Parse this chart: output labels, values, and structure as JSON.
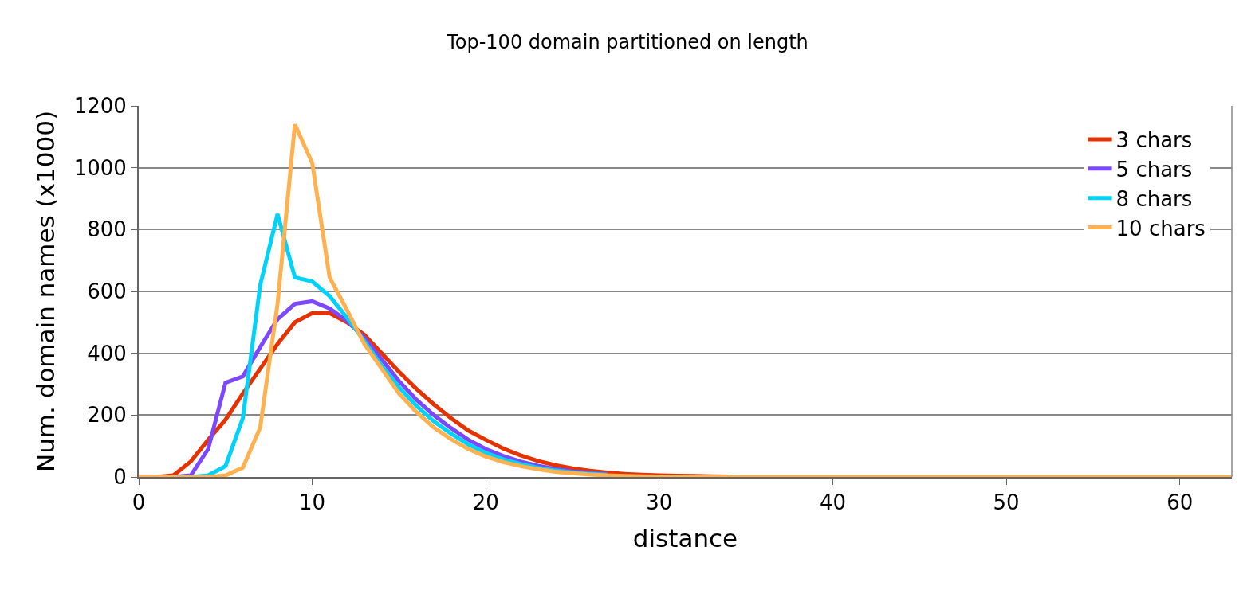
{
  "chart_data": {
    "type": "line",
    "title": "Top-100 domain partitioned on length",
    "xlabel": "distance",
    "ylabel": "Num. domain names (x1000)",
    "x": [
      0,
      1,
      2,
      3,
      4,
      5,
      6,
      7,
      8,
      9,
      10,
      11,
      12,
      13,
      14,
      15,
      16,
      17,
      18,
      19,
      20,
      21,
      22,
      23,
      24,
      25,
      26,
      27,
      28,
      29,
      30,
      31,
      32,
      33,
      34,
      35,
      36,
      37,
      38,
      39,
      40,
      41,
      42,
      43,
      44,
      45,
      46,
      47,
      48,
      49,
      50,
      51,
      52,
      53,
      54,
      55,
      56,
      57,
      58,
      59,
      60,
      61,
      62,
      63
    ],
    "series": [
      {
        "name": "3 chars",
        "color": "#e63200",
        "values": [
          0,
          0,
          5,
          50,
          120,
          185,
          270,
          350,
          430,
          500,
          530,
          530,
          500,
          460,
          400,
          340,
          285,
          235,
          190,
          150,
          120,
          92,
          70,
          52,
          38,
          28,
          20,
          14,
          10,
          7,
          5,
          4,
          3,
          2,
          1,
          null,
          null,
          null,
          null,
          null,
          null,
          null,
          null,
          null,
          null,
          null,
          null,
          null,
          null,
          null,
          null,
          null,
          null,
          null,
          null,
          null,
          null,
          null,
          null,
          null,
          null,
          null,
          null,
          null
        ]
      },
      {
        "name": "5 chars",
        "color": "#7b48ff",
        "values": [
          null,
          null,
          0,
          5,
          90,
          305,
          325,
          420,
          510,
          560,
          568,
          545,
          505,
          450,
          380,
          310,
          250,
          200,
          158,
          120,
          90,
          68,
          50,
          36,
          26,
          18,
          13,
          9,
          null,
          null,
          null,
          null,
          null,
          null,
          null,
          null,
          null,
          null,
          null,
          null,
          null,
          null,
          null,
          null,
          null,
          null,
          null,
          null,
          null,
          null,
          null,
          null,
          null,
          null,
          null,
          null,
          null,
          null,
          null,
          null,
          null,
          null,
          null,
          null
        ]
      },
      {
        "name": "8 chars",
        "color": "#00d2fa",
        "values": [
          null,
          null,
          0,
          0,
          5,
          35,
          190,
          620,
          850,
          645,
          632,
          585,
          515,
          440,
          360,
          290,
          230,
          180,
          140,
          105,
          78,
          57,
          42,
          30,
          21,
          15,
          10,
          7,
          null,
          null,
          null,
          null,
          null,
          null,
          null,
          null,
          null,
          null,
          null,
          null,
          null,
          null,
          null,
          null,
          null,
          null,
          null,
          null,
          null,
          null,
          null,
          null,
          null,
          null,
          null,
          null,
          null,
          null,
          null,
          null,
          null,
          null,
          null,
          null
        ]
      },
      {
        "name": "10 chars",
        "color": "#ffb150",
        "values": [
          0,
          0,
          0,
          0,
          0,
          5,
          30,
          160,
          560,
          1140,
          1015,
          645,
          540,
          430,
          350,
          270,
          210,
          160,
          122,
          90,
          66,
          48,
          35,
          25,
          17,
          12,
          8,
          5,
          3,
          2,
          1,
          1,
          0,
          0,
          0,
          0,
          0,
          0,
          0,
          0,
          0,
          0,
          0,
          0,
          0,
          0,
          0,
          0,
          0,
          0,
          0,
          0,
          0,
          0,
          0,
          0,
          0,
          0,
          0,
          0,
          0,
          0,
          0,
          0
        ]
      }
    ],
    "xlim": [
      0,
      63
    ],
    "xticks": [
      0,
      10,
      20,
      30,
      40,
      50,
      60
    ],
    "ylim": [
      0,
      1200
    ],
    "yticks": [
      0,
      200,
      400,
      600,
      800,
      1000,
      1200
    ],
    "grid": "y",
    "legend": "top right",
    "marker": "none",
    "line_style": "solid"
  }
}
